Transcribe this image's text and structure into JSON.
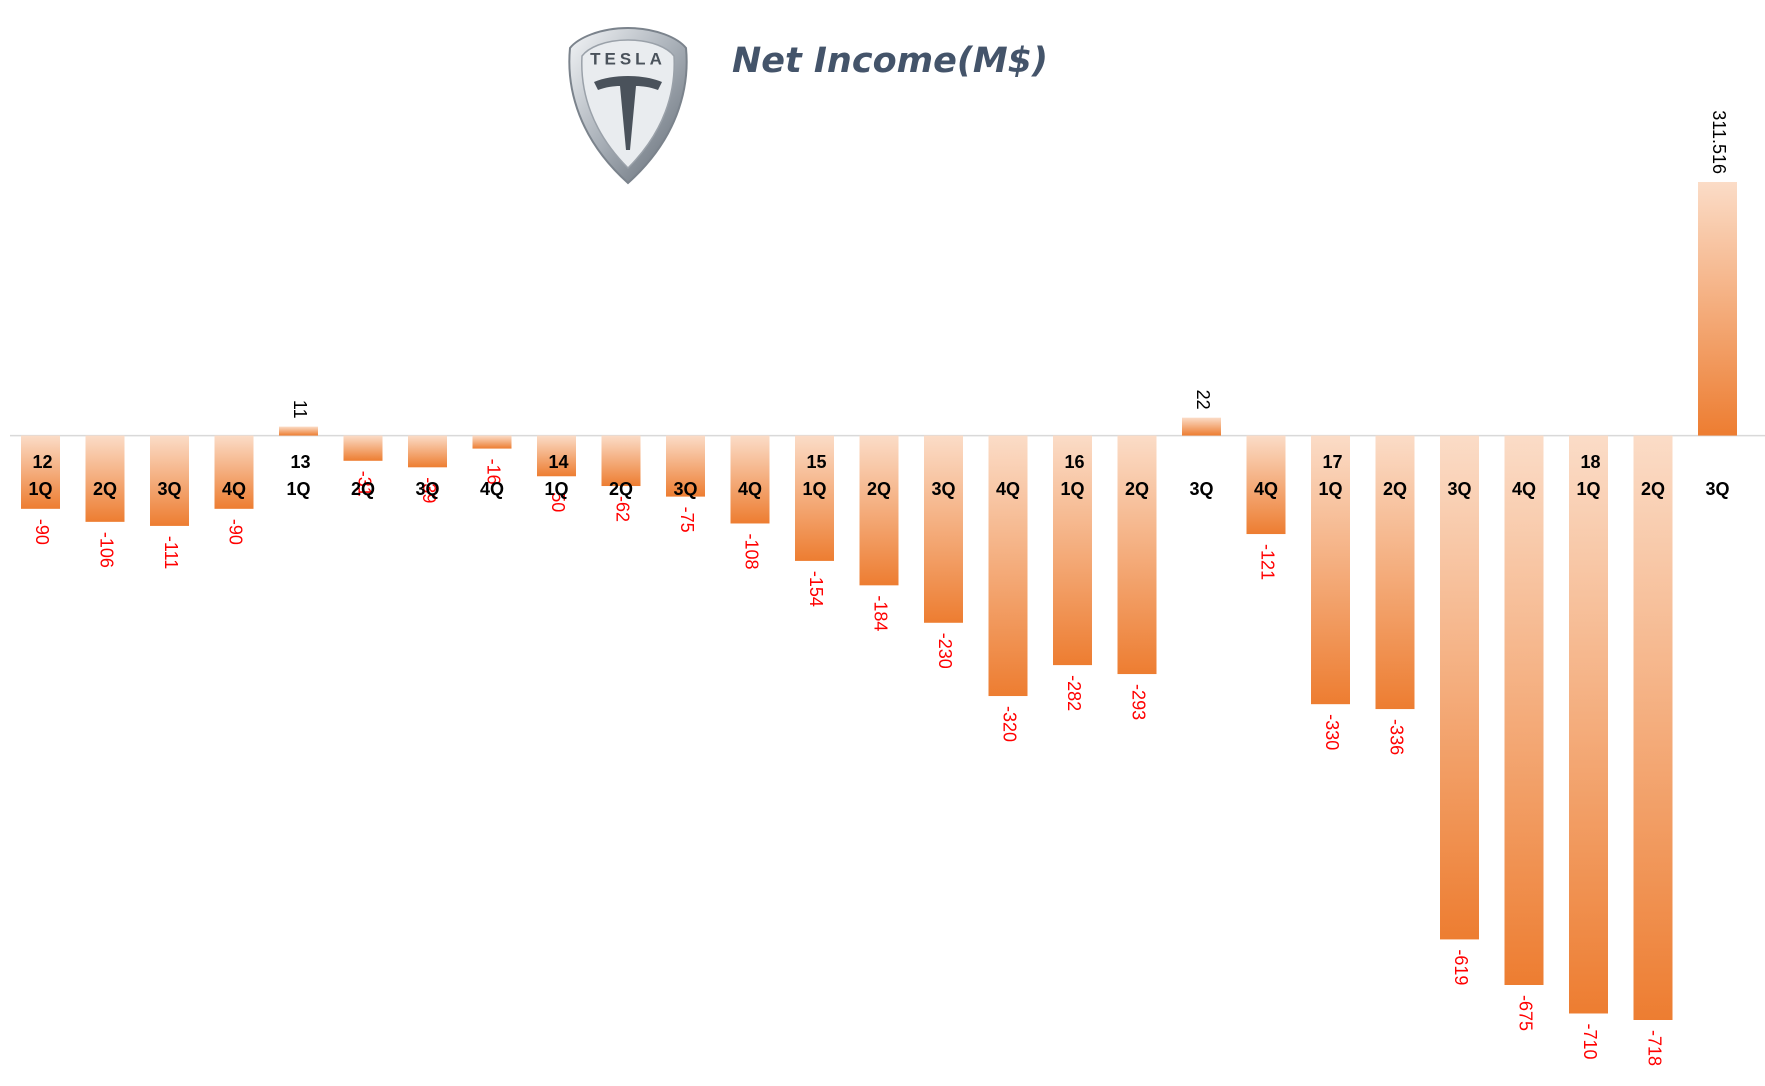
{
  "chart_data": {
    "type": "bar",
    "title": "Net Income(M$)",
    "logo_text": "TESLA",
    "categories": [
      "1Q",
      "2Q",
      "3Q",
      "4Q",
      "1Q",
      "2Q",
      "3Q",
      "4Q",
      "1Q",
      "2Q",
      "3Q",
      "4Q",
      "1Q",
      "2Q",
      "3Q",
      "4Q",
      "1Q",
      "2Q",
      "3Q",
      "4Q",
      "1Q",
      "2Q",
      "3Q",
      "4Q",
      "1Q",
      "2Q",
      "3Q"
    ],
    "year_labels": [
      "12",
      null,
      null,
      null,
      "13",
      null,
      null,
      null,
      "14",
      null,
      null,
      null,
      "15",
      null,
      null,
      null,
      "16",
      null,
      null,
      null,
      "17",
      null,
      null,
      null,
      "18",
      null,
      null
    ],
    "values": [
      -90,
      -106,
      -111,
      -90,
      11,
      -31,
      -39,
      -16,
      -50,
      -62,
      -75,
      -108,
      -154,
      -184,
      -230,
      -320,
      -282,
      -293,
      22,
      -121,
      -330,
      -336,
      -619,
      -675,
      -710,
      -718,
      311.516
    ],
    "gradient": [
      "#fbdcc7",
      "#ed7d31"
    ],
    "negative_label_color": "#ff0000",
    "positive_label_color": "#000000"
  }
}
